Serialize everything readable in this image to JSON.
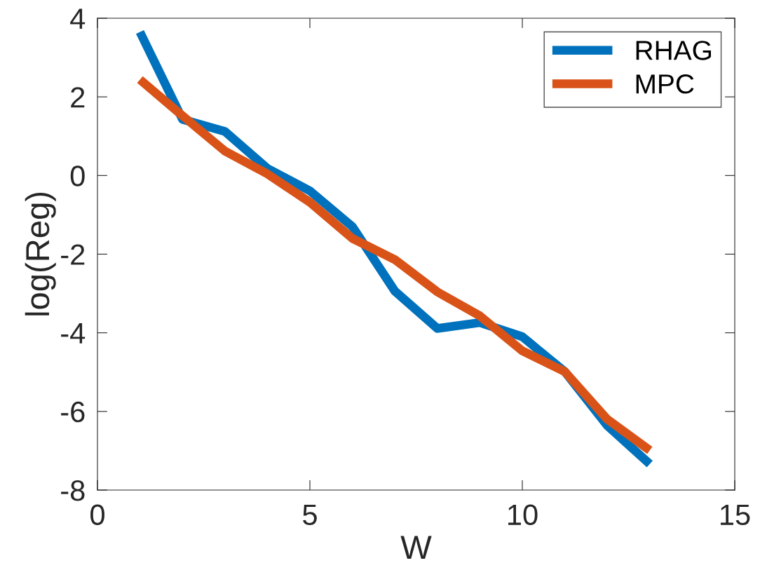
{
  "chart_data": {
    "type": "line",
    "xlabel": "W",
    "ylabel": "log(Reg)",
    "x": [
      1,
      2,
      3,
      4,
      5,
      6,
      7,
      8,
      9,
      10,
      11,
      12,
      13
    ],
    "series": [
      {
        "name": "RHAG",
        "color": "#0072bd",
        "values": [
          3.65,
          1.43,
          1.12,
          0.18,
          -0.39,
          -1.3,
          -2.94,
          -3.89,
          -3.74,
          -4.1,
          -4.99,
          -6.36,
          -7.34
        ]
      },
      {
        "name": "MPC",
        "color": "#d95319",
        "values": [
          2.44,
          1.52,
          0.62,
          0.04,
          -0.68,
          -1.6,
          -2.14,
          -2.96,
          -3.57,
          -4.46,
          -4.99,
          -6.2,
          -6.99
        ]
      }
    ],
    "xlim": [
      0,
      15
    ],
    "xticks": [
      0,
      5,
      10,
      15
    ],
    "ylim": [
      -8,
      4
    ],
    "yticks": [
      -8,
      -6,
      -4,
      -2,
      0,
      2,
      4
    ],
    "legend": "top right",
    "grid": false,
    "marker": "none",
    "line_style": "solid"
  }
}
